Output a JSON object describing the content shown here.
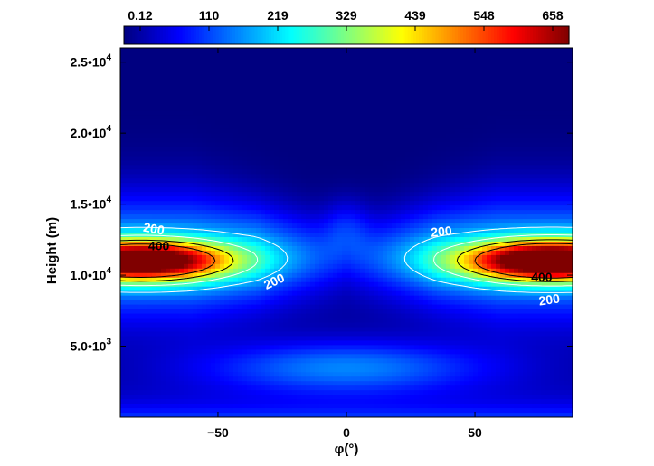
{
  "chart_data": {
    "type": "heatmap",
    "title": "",
    "xlabel": "φ(°)",
    "ylabel": "Height (m)",
    "xlim": [
      -88,
      88
    ],
    "ylim": [
      0,
      26000
    ],
    "x_ticks": [
      {
        "value": -50,
        "label": "−50"
      },
      {
        "value": 0,
        "label": "0"
      },
      {
        "value": 50,
        "label": "50"
      }
    ],
    "y_ticks": [
      {
        "value": 5000,
        "label": "5.0•10",
        "exp": "3"
      },
      {
        "value": 10000,
        "label": "1.0•10",
        "exp": "4"
      },
      {
        "value": 15000,
        "label": "1.5•10",
        "exp": "4"
      },
      {
        "value": 20000,
        "label": "2.0•10",
        "exp": "4"
      },
      {
        "value": 25000,
        "label": "2.5•10",
        "exp": "4"
      }
    ],
    "colorbar": {
      "min": 0.12,
      "max": 658,
      "placement": "top",
      "colormap": "jet",
      "tick_labels": [
        "0.12",
        "110",
        "219",
        "329",
        "439",
        "548",
        "658"
      ]
    },
    "contour_levels": [
      200,
      400
    ],
    "contour_labels": [
      {
        "text": "200",
        "x": -75,
        "y": 13200,
        "color": "#ffffff",
        "angle": 10
      },
      {
        "text": "400",
        "x": -73,
        "y": 12000,
        "color": "#000000",
        "angle": 0
      },
      {
        "text": "200",
        "x": -28,
        "y": 9500,
        "color": "#ffffff",
        "angle": -25
      },
      {
        "text": "200",
        "x": 37,
        "y": 13000,
        "color": "#ffffff",
        "angle": -5
      },
      {
        "text": "400",
        "x": 76,
        "y": 9800,
        "color": "#000000",
        "angle": 0
      },
      {
        "text": "200",
        "x": 79,
        "y": 8200,
        "color": "#ffffff",
        "angle": -8
      }
    ],
    "field_model": {
      "jets": [
        {
          "x": -80,
          "y": 11000,
          "peak": 620,
          "sx": 24,
          "sy": 1000
        },
        {
          "x": 80,
          "y": 11000,
          "peak": 658,
          "sx": 24,
          "sy": 1000
        }
      ],
      "belts": [
        {
          "y": 11500,
          "peak": 190,
          "halfwidth": 3000
        },
        {
          "y": 3500,
          "peak": 150,
          "halfwidth": 1300
        }
      ],
      "equatorial_bulge": {
        "y": 13500,
        "peak": 70,
        "sx": 6,
        "sy": 1400
      },
      "value_at_lowest_levels": 120
    }
  }
}
